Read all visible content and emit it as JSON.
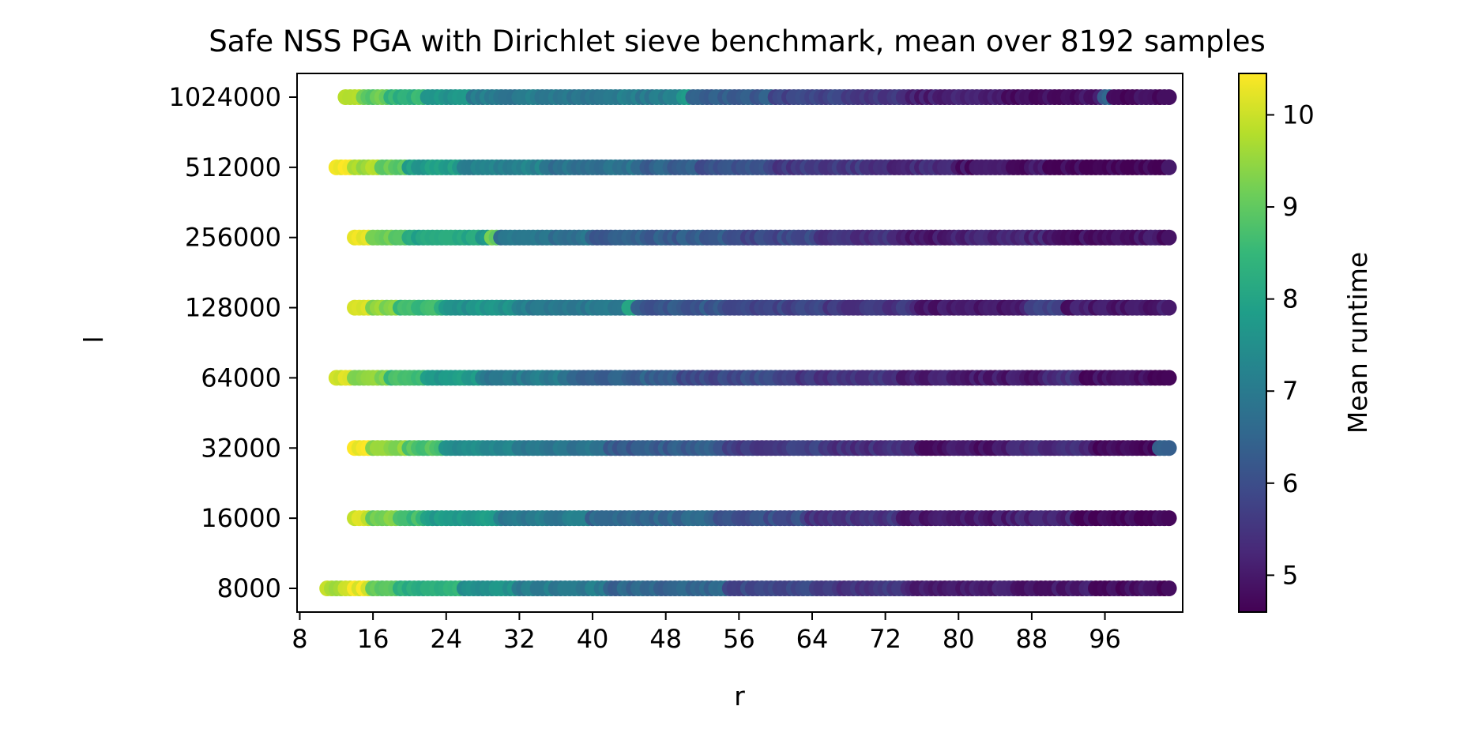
{
  "chart_data": {
    "type": "scatter",
    "title": "Safe NSS PGA with Dirichlet sieve benchmark, mean over 8192 samples",
    "xlabel": "r",
    "ylabel": "l",
    "x_ticks": [
      "8",
      "16",
      "24",
      "32",
      "40",
      "48",
      "56",
      "64",
      "72",
      "80",
      "88",
      "96"
    ],
    "y_ticks": [
      "8000",
      "16000",
      "32000",
      "64000",
      "128000",
      "256000",
      "512000",
      "1024000"
    ],
    "y_scale": "log2",
    "xlim": [
      7.7,
      104.5
    ],
    "colorbar": {
      "label": "Mean runtime",
      "ticks": [
        "5",
        "6",
        "7",
        "8",
        "9",
        "10"
      ],
      "range": [
        4.6,
        10.45
      ],
      "colormap": "viridis",
      "stops": [
        "#440154",
        "#482878",
        "#3e4989",
        "#31688e",
        "#26828e",
        "#1f9e89",
        "#35b779",
        "#6ece58",
        "#b5de2b",
        "#fde725"
      ]
    },
    "series": [
      {
        "l": 1024000,
        "r_start": 13,
        "r_end": 103,
        "runtime_segments": [
          [
            13,
            10.0
          ],
          [
            15,
            9.0
          ],
          [
            18,
            8.4
          ],
          [
            22,
            7.6
          ],
          [
            27,
            7.0
          ],
          [
            50,
            7.6
          ],
          [
            51,
            6.3
          ],
          [
            60,
            5.8
          ],
          [
            68,
            5.5
          ],
          [
            75,
            5.1
          ],
          [
            85,
            4.9
          ],
          [
            96,
            6.5
          ],
          [
            97,
            4.8
          ],
          [
            103,
            4.8
          ]
        ]
      },
      {
        "l": 512000,
        "r_start": 12,
        "r_end": 103,
        "runtime_segments": [
          [
            12,
            10.4
          ],
          [
            14,
            9.6
          ],
          [
            17,
            9.0
          ],
          [
            20,
            7.8
          ],
          [
            26,
            7.2
          ],
          [
            35,
            6.8
          ],
          [
            45,
            6.4
          ],
          [
            52,
            6.0
          ],
          [
            60,
            5.6
          ],
          [
            70,
            5.3
          ],
          [
            80,
            4.9
          ],
          [
            90,
            4.7
          ],
          [
            103,
            4.8
          ]
        ]
      },
      {
        "l": 256000,
        "r_start": 14,
        "r_end": 103,
        "runtime_segments": [
          [
            14,
            10.2
          ],
          [
            16,
            9.0
          ],
          [
            20,
            8.0
          ],
          [
            28,
            7.6
          ],
          [
            29,
            9.0
          ],
          [
            30,
            6.8
          ],
          [
            40,
            6.3
          ],
          [
            55,
            5.9
          ],
          [
            65,
            5.4
          ],
          [
            74,
            5.0
          ],
          [
            80,
            5.2
          ],
          [
            90,
            4.9
          ],
          [
            103,
            4.9
          ]
        ]
      },
      {
        "l": 128000,
        "r_start": 14,
        "r_end": 103,
        "runtime_segments": [
          [
            14,
            10.3
          ],
          [
            16,
            9.4
          ],
          [
            19,
            8.5
          ],
          [
            24,
            7.6
          ],
          [
            32,
            7.0
          ],
          [
            44,
            8.0
          ],
          [
            45,
            6.2
          ],
          [
            55,
            5.8
          ],
          [
            66,
            5.5
          ],
          [
            76,
            5.0
          ],
          [
            88,
            5.7
          ],
          [
            92,
            5.0
          ],
          [
            103,
            4.8
          ]
        ]
      },
      {
        "l": 64000,
        "r_start": 12,
        "r_end": 103,
        "runtime_segments": [
          [
            12,
            10.0
          ],
          [
            14,
            9.4
          ],
          [
            18,
            8.6
          ],
          [
            22,
            7.8
          ],
          [
            28,
            7.0
          ],
          [
            38,
            6.4
          ],
          [
            50,
            5.9
          ],
          [
            62,
            5.5
          ],
          [
            74,
            5.1
          ],
          [
            82,
            5.0
          ],
          [
            90,
            5.4
          ],
          [
            94,
            4.8
          ],
          [
            103,
            4.8
          ]
        ]
      },
      {
        "l": 32000,
        "r_start": 14,
        "r_end": 103,
        "runtime_segments": [
          [
            14,
            10.3
          ],
          [
            16,
            9.4
          ],
          [
            20,
            8.8
          ],
          [
            24,
            7.4
          ],
          [
            32,
            6.9
          ],
          [
            42,
            6.3
          ],
          [
            55,
            5.7
          ],
          [
            66,
            5.4
          ],
          [
            76,
            4.9
          ],
          [
            86,
            5.3
          ],
          [
            95,
            4.7
          ],
          [
            102,
            6.3
          ],
          [
            103,
            6.3
          ]
        ]
      },
      {
        "l": 16000,
        "r_start": 14,
        "r_end": 103,
        "runtime_segments": [
          [
            14,
            10.0
          ],
          [
            16,
            9.2
          ],
          [
            19,
            8.6
          ],
          [
            22,
            7.8
          ],
          [
            30,
            7.0
          ],
          [
            40,
            6.5
          ],
          [
            54,
            6.0
          ],
          [
            64,
            5.5
          ],
          [
            74,
            5.0
          ],
          [
            86,
            5.2
          ],
          [
            93,
            4.7
          ],
          [
            103,
            4.8
          ]
        ]
      },
      {
        "l": 8000,
        "r_start": 11,
        "r_end": 103,
        "runtime_segments": [
          [
            11,
            9.8
          ],
          [
            13,
            10.2
          ],
          [
            16,
            9.0
          ],
          [
            19,
            8.3
          ],
          [
            26,
            7.6
          ],
          [
            32,
            7.0
          ],
          [
            42,
            6.5
          ],
          [
            55,
            5.9
          ],
          [
            65,
            5.5
          ],
          [
            75,
            5.1
          ],
          [
            85,
            5.0
          ],
          [
            95,
            4.8
          ],
          [
            103,
            4.9
          ]
        ]
      }
    ]
  }
}
